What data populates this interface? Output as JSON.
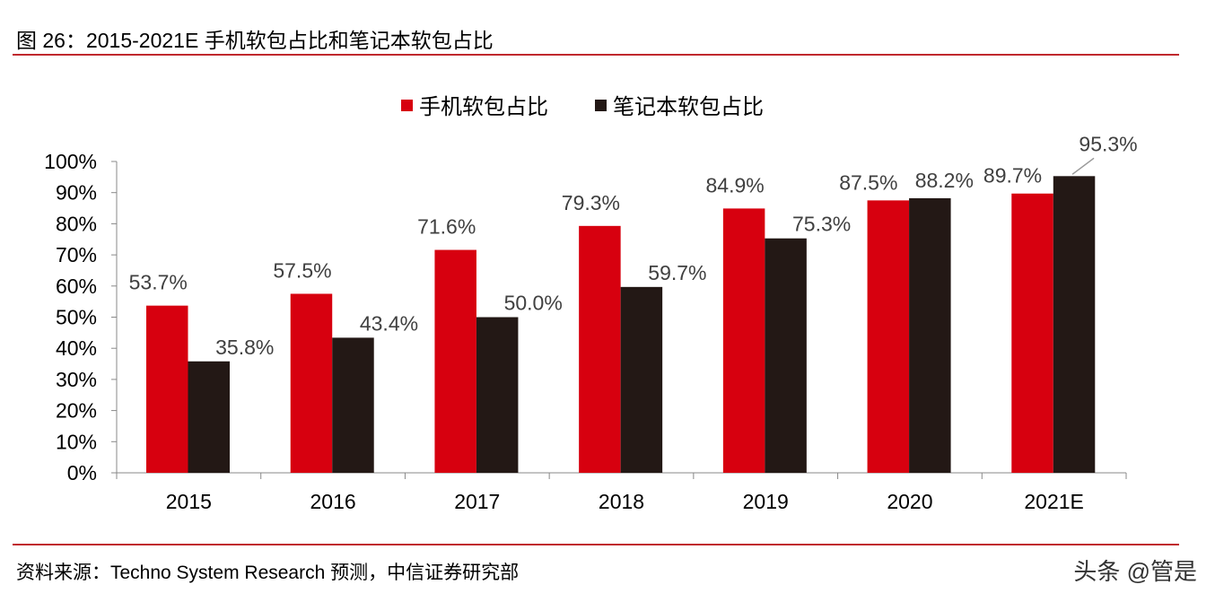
{
  "title": "图 26：2015-2021E 手机软包占比和笔记本软包占比",
  "source": "资料来源：Techno System Research 预测，中信证券研究部",
  "watermark": "头条 @管是",
  "chart_data": {
    "type": "bar",
    "categories": [
      "2015",
      "2016",
      "2017",
      "2018",
      "2019",
      "2020",
      "2021E"
    ],
    "series": [
      {
        "name": "手机软包占比",
        "color": "#d7000f",
        "values": [
          53.7,
          57.5,
          71.6,
          79.3,
          84.9,
          87.5,
          89.7
        ],
        "labels": [
          "53.7%",
          "57.5%",
          "71.6%",
          "79.3%",
          "84.9%",
          "87.5%",
          "89.7%"
        ]
      },
      {
        "name": "笔记本软包占比",
        "color": "#231815",
        "values": [
          35.8,
          43.4,
          50.0,
          59.7,
          75.3,
          88.2,
          95.3
        ],
        "labels": [
          "35.8%",
          "43.4%",
          "50.0%",
          "59.7%",
          "75.3%",
          "88.2%",
          "95.3%"
        ]
      }
    ],
    "yticks": [
      "0%",
      "10%",
      "20%",
      "30%",
      "40%",
      "50%",
      "60%",
      "70%",
      "80%",
      "90%",
      "100%"
    ],
    "ylim": [
      0,
      100
    ],
    "grid": false,
    "legend": "top-center"
  }
}
